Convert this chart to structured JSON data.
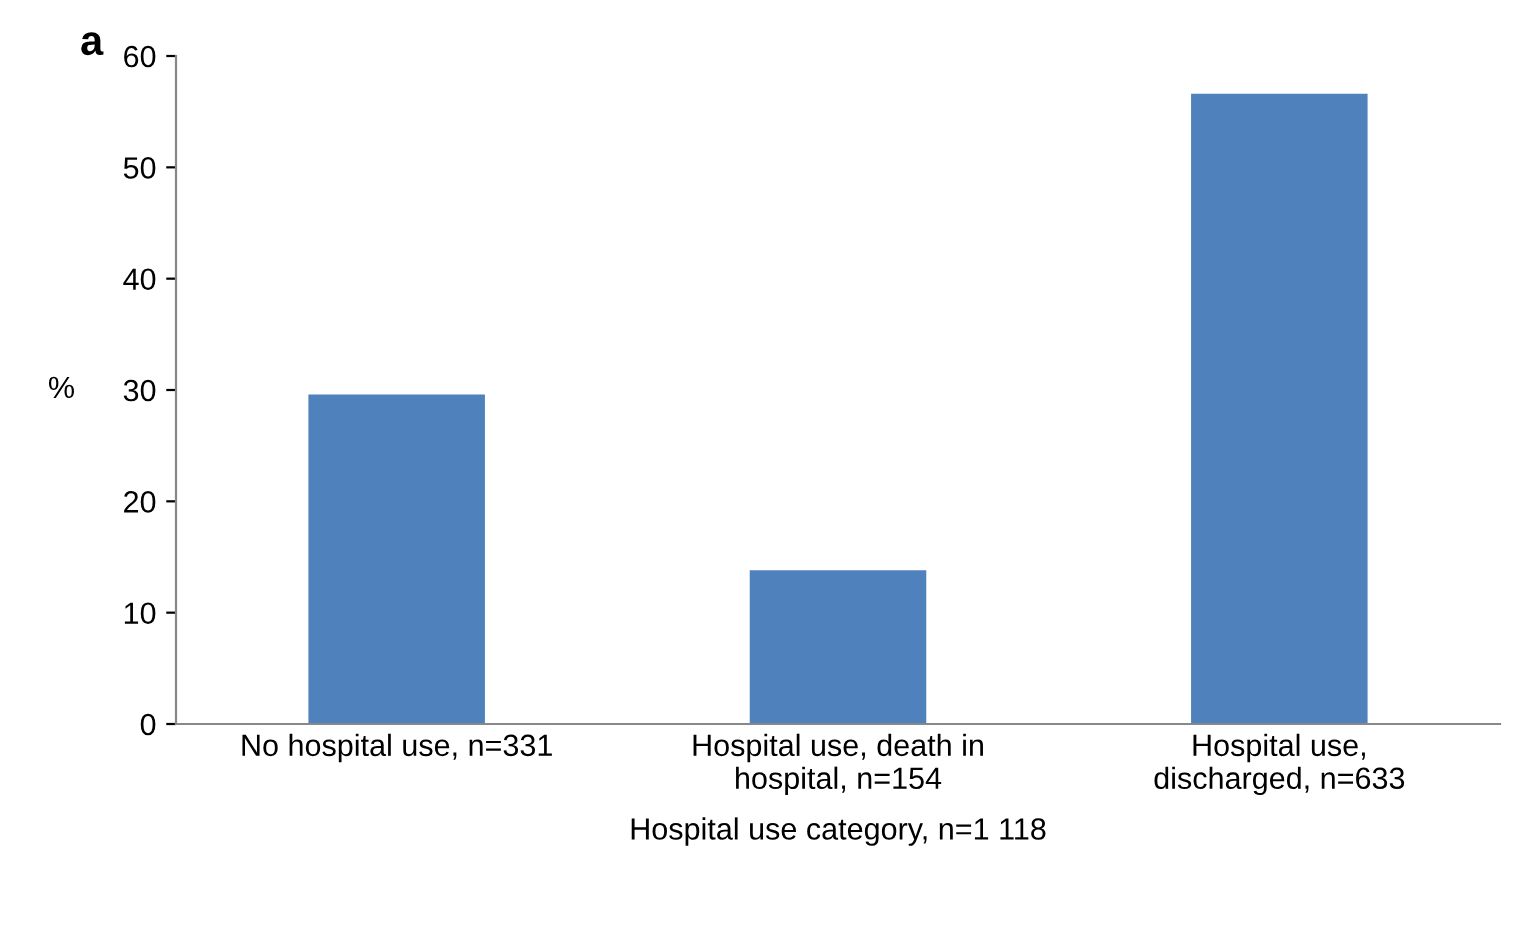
{
  "chart_data": {
    "type": "bar",
    "categories": [
      "No hospital use, n=331",
      "Hospital use, death in\nhospital, n=154",
      "Hospital use,\ndischarged, n=633"
    ],
    "values": [
      29.6,
      13.8,
      56.6
    ],
    "color": "#4f81bd",
    "ylabel": "%",
    "xlabel": "Hospital use category, n=1 118",
    "annotations": [
      "a"
    ],
    "ylim": [
      0,
      60
    ],
    "yticks": [
      0,
      10,
      20,
      30,
      40,
      50,
      60
    ],
    "grid": false,
    "legend": false
  }
}
